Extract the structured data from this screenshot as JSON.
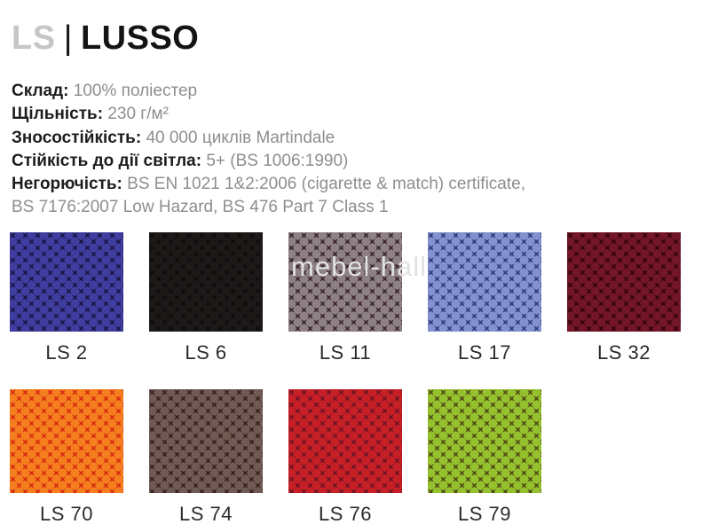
{
  "header": {
    "code": "LS",
    "separator": "|",
    "name": "LUSSO"
  },
  "specs": [
    {
      "label": "Склад:",
      "value": "100% поліестер"
    },
    {
      "label": "Щільність:",
      "value": "230 г/м²"
    },
    {
      "label": "Зносостійкість:",
      "value": "40 000 циклів Martindale"
    },
    {
      "label": "Стійкість до дії світла:",
      "value": "5+ (BS 1006:1990)"
    },
    {
      "label": "Негорючість:",
      "value": "BS EN 1021 1&2:2006 (cigarette & match) certificate,",
      "value_line2": "BS 7176:2007 Low Hazard, BS 476 Part 7 Class 1"
    }
  ],
  "watermark": "mebel-hall",
  "colors": {
    "title_code_gray": "#c6c6c6",
    "title_name_black": "#141414",
    "spec_label": "#1d1d1d",
    "spec_value": "#8e8e8e",
    "watermark": "#e2e2e2"
  },
  "swatches": {
    "rows": [
      [
        {
          "label": "LS 2",
          "base": "#403da0",
          "cross": "#1b1747"
        },
        {
          "label": "LS 6",
          "base": "#1d1919",
          "cross": "#0f0c0c"
        },
        {
          "label": "LS 11",
          "base": "#8d8086",
          "cross": "#3f2830"
        },
        {
          "label": "LS 17",
          "base": "#8192ce",
          "cross": "#363e80"
        },
        {
          "label": "LS 32",
          "base": "#731627",
          "cross": "#37040f"
        }
      ],
      [
        {
          "label": "LS 70",
          "base": "#f57e1e",
          "cross": "#d62f12"
        },
        {
          "label": "LS 74",
          "base": "#705b54",
          "cross": "#3b221e"
        },
        {
          "label": "LS 76",
          "base": "#c62026",
          "cross": "#731425"
        },
        {
          "label": "LS 79",
          "base": "#95c12e",
          "cross": "#524f16"
        }
      ]
    ]
  }
}
